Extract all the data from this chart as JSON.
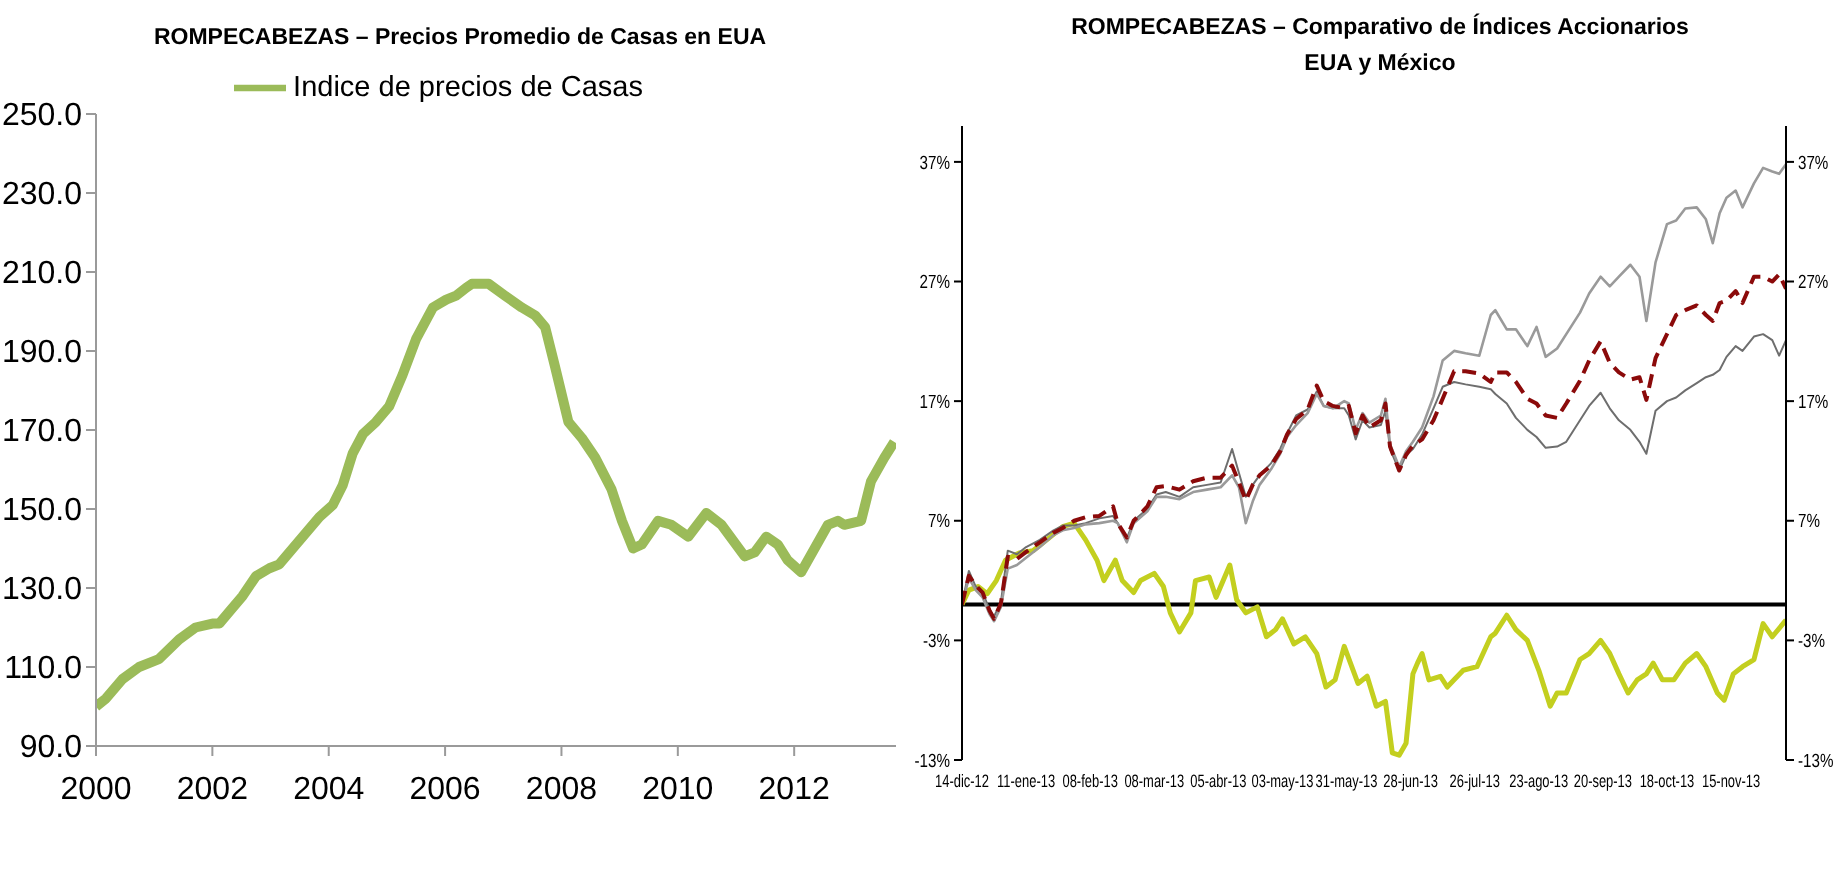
{
  "chart_data": [
    {
      "type": "line",
      "title": "ROMPECABEZAS – Precios Promedio de Casas en EUA",
      "x": [
        2000,
        2000.17,
        2000.46,
        2000.74,
        2001.08,
        2001.43,
        2001.71,
        2002,
        2002.12,
        2002.29,
        2002.52,
        2002.75,
        2002.98,
        2003.15,
        2003.38,
        2003.61,
        2003.84,
        2004.07,
        2004.24,
        2004.41,
        2004.59,
        2004.81,
        2005.04,
        2005.27,
        2005.5,
        2005.79,
        2006.02,
        2006.19,
        2006.36,
        2006.46,
        2006.75,
        2007.03,
        2007.32,
        2007.55,
        2007.72,
        2007.89,
        2008.12,
        2008.35,
        2008.58,
        2008.86,
        2009.04,
        2009.23,
        2009.38,
        2009.66,
        2009.89,
        2010.18,
        2010.49,
        2010.75,
        2011.15,
        2011.32,
        2011.52,
        2011.72,
        2011.89,
        2012.12,
        2012.35,
        2012.58,
        2012.75,
        2012.86,
        2013.15,
        2013.32,
        2013.55,
        2013.72
      ],
      "series": [
        {
          "name": "Indice de precios de Casas",
          "color": "#9bbb59",
          "values": [
            100,
            102,
            107,
            110,
            112,
            117,
            120,
            121,
            121,
            124,
            128,
            133,
            135,
            136,
            140,
            144,
            148,
            151,
            156,
            164,
            169,
            172,
            176,
            184,
            193,
            201,
            203,
            204,
            206,
            207,
            207,
            204,
            201,
            199,
            196,
            186,
            172,
            168,
            163,
            155,
            147,
            140,
            141,
            147,
            146,
            143,
            149,
            146,
            138,
            139,
            143,
            141,
            137,
            134,
            140,
            146,
            147,
            146,
            147,
            157,
            163,
            167
          ]
        }
      ],
      "xlim": [
        2000,
        2013.75
      ],
      "xticks": [
        2000,
        2002,
        2004,
        2006,
        2008,
        2010,
        2012
      ],
      "ylim": [
        90,
        250
      ],
      "yticks": [
        {
          "value": 90,
          "label": "90.0"
        },
        {
          "value": 110,
          "label": "110.0"
        },
        {
          "value": 130,
          "label": "130.0"
        },
        {
          "value": 150,
          "label": "150.0"
        },
        {
          "value": 170,
          "label": "170.0"
        },
        {
          "value": 190,
          "label": "190.0"
        },
        {
          "value": 210,
          "label": "210.0"
        },
        {
          "value": 230,
          "label": "230.0"
        },
        {
          "value": 250,
          "label": "250.0"
        }
      ],
      "legend": "top",
      "marker": "none"
    },
    {
      "type": "line",
      "title": "ROMPECABEZAS – Comparativo de Índices Accionarios EUA y México",
      "x": [
        "2012-12-14",
        "2012-12-17",
        "2012-12-20",
        "2012-12-23",
        "2012-12-26",
        "2012-12-28",
        "2012-12-31",
        "2013-01-03",
        "2013-01-07",
        "2013-01-11",
        "2013-01-17",
        "2013-01-23",
        "2013-01-27",
        "2013-02-01",
        "2013-02-06",
        "2013-02-12",
        "2013-02-18",
        "2013-02-20",
        "2013-02-24",
        "2013-02-27",
        "2013-03-05",
        "2013-03-09",
        "2013-03-13",
        "2013-03-19",
        "2013-03-25",
        "2013-03-31",
        "2013-04-06",
        "2013-04-11",
        "2013-04-14",
        "2013-04-17",
        "2013-04-20",
        "2013-04-23",
        "2013-04-28",
        "2013-05-02",
        "2013-05-05",
        "2013-05-09",
        "2013-05-14",
        "2013-05-18",
        "2013-05-21",
        "2013-05-25",
        "2013-05-30",
        "2013-06-01",
        "2013-06-04",
        "2013-06-07",
        "2013-06-10",
        "2013-06-15",
        "2013-06-17",
        "2013-06-19",
        "2013-06-23",
        "2013-06-26",
        "2013-06-29",
        "2013-07-03",
        "2013-07-08",
        "2013-07-12",
        "2013-07-17",
        "2013-07-22",
        "2013-07-28",
        "2013-08-02",
        "2013-08-04",
        "2013-08-09",
        "2013-08-13",
        "2013-08-18",
        "2013-08-22",
        "2013-08-26",
        "2013-08-31",
        "2013-09-04",
        "2013-09-10",
        "2013-09-14",
        "2013-09-19",
        "2013-09-23",
        "2013-09-27",
        "2013-10-02",
        "2013-10-06",
        "2013-10-09",
        "2013-10-13",
        "2013-10-18",
        "2013-10-22",
        "2013-10-26",
        "2013-10-31",
        "2013-11-04",
        "2013-11-07",
        "2013-11-10",
        "2013-11-13",
        "2013-11-17",
        "2013-11-20",
        "2013-11-25",
        "2013-11-29",
        "2013-12-03",
        "2013-12-06",
        "2013-12-09"
      ],
      "series": [
        {
          "color": "#c3cf1f",
          "x": [
            "2012-12-14",
            "2012-12-17",
            "2012-12-21",
            "2012-12-25",
            "2012-12-29",
            "2013-01-02",
            "2013-01-08",
            "2013-01-14",
            "2013-01-20",
            "2013-01-27",
            "2013-02-01",
            "2013-02-06",
            "2013-02-11",
            "2013-02-14",
            "2013-02-19",
            "2013-02-22",
            "2013-02-27",
            "2013-03-02",
            "2013-03-08",
            "2013-03-12",
            "2013-03-15",
            "2013-03-19",
            "2013-03-24",
            "2013-03-26",
            "2013-04-01",
            "2013-04-04",
            "2013-04-10",
            "2013-04-13",
            "2013-04-17",
            "2013-04-22",
            "2013-04-26",
            "2013-04-30",
            "2013-05-03",
            "2013-05-08",
            "2013-05-13",
            "2013-05-18",
            "2013-05-22",
            "2013-05-26",
            "2013-05-30",
            "2013-06-05",
            "2013-06-09",
            "2013-06-13",
            "2013-06-17",
            "2013-06-20",
            "2013-06-23",
            "2013-06-26",
            "2013-06-29",
            "2013-07-01",
            "2013-07-03",
            "2013-07-06",
            "2013-07-11",
            "2013-07-14",
            "2013-07-17",
            "2013-07-21",
            "2013-07-27",
            "2013-08-02",
            "2013-08-04",
            "2013-08-09",
            "2013-08-13",
            "2013-08-18",
            "2013-08-23",
            "2013-08-28",
            "2013-08-31",
            "2013-09-04",
            "2013-09-10",
            "2013-09-14",
            "2013-09-19",
            "2013-09-23",
            "2013-09-27",
            "2013-10-01",
            "2013-10-05",
            "2013-10-09",
            "2013-10-12",
            "2013-10-16",
            "2013-10-21",
            "2013-10-26",
            "2013-10-31",
            "2013-11-04",
            "2013-11-09",
            "2013-11-12",
            "2013-11-16",
            "2013-11-20",
            "2013-11-25",
            "2013-11-29",
            "2013-12-03",
            "2013-12-09"
          ],
          "values": [
            0,
            1.2,
            1.5,
            0.9,
            2.0,
            3.7,
            4.3,
            4.5,
            5.4,
            6.5,
            6.8,
            5.4,
            3.7,
            2.0,
            3.7,
            2.0,
            1.0,
            2.0,
            2.6,
            1.5,
            -0.7,
            -2.3,
            -0.7,
            2.0,
            2.3,
            0.6,
            3.3,
            0.4,
            -0.7,
            -0.2,
            -2.7,
            -2.1,
            -1.2,
            -3.3,
            -2.7,
            -4.1,
            -6.9,
            -6.3,
            -3.5,
            -6.6,
            -6.0,
            -8.5,
            -8.1,
            -12.4,
            -12.6,
            -11.6,
            -5.8,
            -4.9,
            -4.1,
            -6.3,
            -6.0,
            -6.9,
            -6.3,
            -5.5,
            -5.2,
            -2.7,
            -2.4,
            -0.9,
            -2.1,
            -3.0,
            -5.5,
            -8.5,
            -7.4,
            -7.4,
            -4.6,
            -4.1,
            -3.0,
            -4.1,
            -5.8,
            -7.4,
            -6.3,
            -5.8,
            -4.9,
            -6.3,
            -6.3,
            -4.9,
            -4.1,
            -5.2,
            -7.4,
            -8.0,
            -5.8,
            -5.2,
            -4.6,
            -1.6,
            -2.7,
            -1.3
          ]
        },
        {
          "color": "#6e6e6e",
          "values": [
            0,
            2.8,
            1.5,
            1.0,
            -0.4,
            -1.0,
            0.2,
            4.5,
            4.2,
            4.8,
            5.4,
            6.2,
            6.6,
            6.6,
            6.8,
            7.2,
            7.4,
            6.8,
            5.5,
            7.0,
            8.0,
            9.2,
            9.4,
            9.0,
            9.8,
            10.0,
            10.2,
            13.0,
            11.0,
            9.0,
            10.0,
            10.8,
            11.8,
            13.0,
            14.3,
            15.8,
            16.3,
            17.8,
            16.6,
            16.4,
            16.4,
            15.8,
            13.8,
            15.4,
            14.8,
            15.0,
            16.2,
            13.0,
            11.2,
            12.5,
            13.0,
            14.2,
            16.4,
            18.2,
            18.6,
            18.4,
            18.2,
            18.0,
            17.6,
            16.8,
            15.6,
            14.6,
            14.0,
            13.1,
            13.2,
            13.6,
            15.4,
            16.6,
            17.7,
            16.4,
            15.4,
            14.6,
            13.6,
            12.6,
            16.2,
            17.0,
            17.3,
            17.9,
            18.5,
            19.0,
            19.2,
            19.6,
            20.7,
            21.6,
            21.2,
            22.4,
            22.6,
            22.1,
            20.8,
            22.1
          ]
        },
        {
          "color": "#9a9a9a",
          "values": [
            0,
            2.2,
            1.2,
            0.6,
            -0.8,
            -1.4,
            -0.2,
            3.0,
            3.3,
            3.9,
            4.8,
            5.8,
            6.2,
            6.4,
            6.7,
            6.8,
            7.0,
            6.8,
            5.2,
            6.8,
            7.8,
            9.0,
            9.0,
            8.8,
            9.4,
            9.6,
            9.8,
            10.8,
            9.8,
            6.8,
            8.6,
            10.0,
            11.3,
            12.6,
            14.0,
            15.0,
            16.0,
            17.6,
            16.6,
            16.4,
            17.0,
            16.8,
            14.6,
            16.0,
            15.2,
            15.8,
            17.2,
            13.4,
            11.5,
            12.8,
            13.6,
            14.8,
            17.4,
            20.4,
            21.2,
            21.0,
            20.8,
            24.2,
            24.6,
            23.0,
            23.0,
            21.6,
            23.2,
            20.7,
            21.4,
            22.6,
            24.4,
            26.0,
            27.4,
            26.6,
            27.4,
            28.4,
            27.4,
            23.7,
            28.6,
            31.8,
            32.1,
            33.1,
            33.2,
            32.2,
            30.2,
            32.7,
            34.0,
            34.6,
            33.2,
            35.2,
            36.5,
            36.2,
            36.0,
            36.8
          ]
        },
        {
          "color": "#8b0a0a",
          "line_style": "dashed",
          "values": [
            0,
            2.4,
            1.6,
            1.0,
            -0.5,
            -1.2,
            0.1,
            4.0,
            3.8,
            4.4,
            5.2,
            6.0,
            6.4,
            7.0,
            7.3,
            7.4,
            8.2,
            6.8,
            5.6,
            7.0,
            8.2,
            9.8,
            9.9,
            9.6,
            10.3,
            10.6,
            10.6,
            11.6,
            10.2,
            8.7,
            10.0,
            10.8,
            11.6,
            12.8,
            14.2,
            15.5,
            16.3,
            18.3,
            17.0,
            16.6,
            16.4,
            16.6,
            14.3,
            15.8,
            14.8,
            15.4,
            16.8,
            13.2,
            11.2,
            12.5,
            13.3,
            13.8,
            15.4,
            17.2,
            19.5,
            19.5,
            19.3,
            18.6,
            19.4,
            19.4,
            18.6,
            17.2,
            16.8,
            15.8,
            15.6,
            16.8,
            18.7,
            20.4,
            22.0,
            20.2,
            19.4,
            18.8,
            19.0,
            17.1,
            20.6,
            22.6,
            24.2,
            24.6,
            25.0,
            24.2,
            23.7,
            25.2,
            25.4,
            26.2,
            25.2,
            27.4,
            27.4,
            27.0,
            27.6,
            26.4
          ]
        }
      ],
      "xlim": [
        "2012-12-14",
        "2013-12-09"
      ],
      "xticks": [
        {
          "value": "2012-12-14",
          "label": "14-dic-12"
        },
        {
          "value": "2013-01-11",
          "label": "11-ene-13"
        },
        {
          "value": "2013-02-08",
          "label": "08-feb-13"
        },
        {
          "value": "2013-03-08",
          "label": "08-mar-13"
        },
        {
          "value": "2013-04-05",
          "label": "05-abr-13"
        },
        {
          "value": "2013-05-03",
          "label": "03-may-13"
        },
        {
          "value": "2013-05-31",
          "label": "31-may-13"
        },
        {
          "value": "2013-06-28",
          "label": "28-jun-13"
        },
        {
          "value": "2013-07-26",
          "label": "26-jul-13"
        },
        {
          "value": "2013-08-23",
          "label": "23-ago-13"
        },
        {
          "value": "2013-09-20",
          "label": "20-sep-13"
        },
        {
          "value": "2013-10-18",
          "label": "18-oct-13"
        },
        {
          "value": "2013-11-15",
          "label": "15-nov-13"
        }
      ],
      "ylim": [
        -13,
        40
      ],
      "yticks": [
        {
          "value": -13,
          "label": "-13%"
        },
        {
          "value": -3,
          "label": "-3%"
        },
        {
          "value": 7,
          "label": "7%"
        },
        {
          "value": 17,
          "label": "17%"
        },
        {
          "value": 27,
          "label": "27%"
        },
        {
          "value": 37,
          "label": "37%"
        }
      ],
      "y2lim": [
        -13,
        40
      ],
      "y2ticks": [
        {
          "value": -13,
          "label": "-13%"
        },
        {
          "value": -3,
          "label": "-3%"
        },
        {
          "value": 7,
          "label": "7%"
        },
        {
          "value": 17,
          "label": "17%"
        },
        {
          "value": 27,
          "label": "27%"
        },
        {
          "value": 37,
          "label": "37%"
        }
      ],
      "ref_lines": [
        {
          "axis": "y",
          "value": 0,
          "color": "#000000"
        }
      ],
      "marker": "none"
    }
  ]
}
